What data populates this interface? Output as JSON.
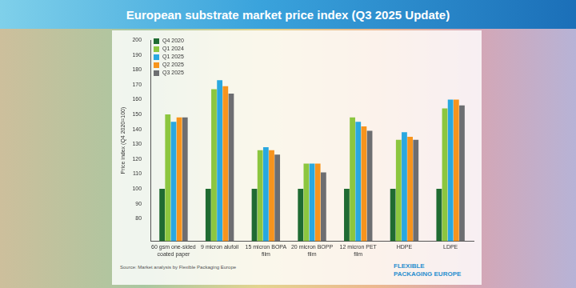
{
  "chart_data": {
    "type": "bar",
    "title": "European substrate market price index (Q3 2025 Update)",
    "y_label": "Price index (Q4 2020=100)",
    "categories": [
      "60 gsm one-sided coated paper",
      "9 micron alufoil",
      "15 micron BOPA film",
      "20 micron BOPP film",
      "12 micron PET film",
      "HDPE",
      "LDPE"
    ],
    "series": [
      {
        "name": "Q4 2020",
        "color": "#1f6b32",
        "values": [
          100,
          100,
          100,
          100,
          100,
          100,
          100
        ]
      },
      {
        "name": "Q1 2024",
        "color": "#8cc63f",
        "values": [
          150,
          167,
          126,
          117,
          148,
          133,
          154
        ]
      },
      {
        "name": "Q1 2025",
        "color": "#29a8e0",
        "values": [
          145,
          173,
          128,
          117,
          145,
          138,
          160
        ]
      },
      {
        "name": "Q2 2025",
        "color": "#f7941d",
        "values": [
          148,
          169,
          126,
          117,
          142,
          135,
          160
        ]
      },
      {
        "name": "Q3 2025",
        "color": "#6d6e71",
        "values": [
          148,
          164,
          123,
          111,
          139,
          133,
          156
        ]
      }
    ],
    "ylim": [
      65,
      200
    ],
    "yticks": [
      80,
      90,
      100,
      110,
      120,
      130,
      140,
      150,
      160,
      170,
      180,
      190,
      200
    ],
    "grid": false,
    "legend": "upper left",
    "source": "Source: Market analysis by Flexible Packaging Europe",
    "logo": [
      "FLEXIBLE",
      "PACKAGING EUROPE"
    ]
  }
}
